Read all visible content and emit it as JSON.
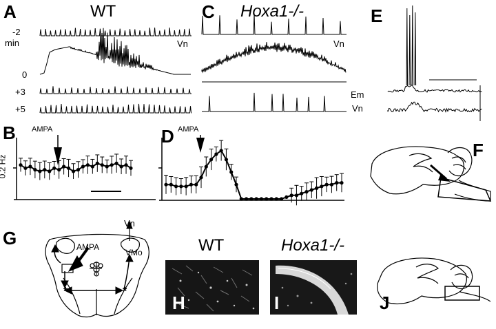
{
  "panels": {
    "A": "A",
    "B": "B",
    "C": "C",
    "D": "D",
    "E": "E",
    "F": "F",
    "G": "G",
    "H": "H",
    "I": "I",
    "J": "J"
  },
  "titles": {
    "wt_top": "WT",
    "ko_top": "Hoxa1-/-",
    "wt_bottom": "WT",
    "ko_bottom": "Hoxa1-/-"
  },
  "trace_labels": {
    "minus2": "-2",
    "min": "min",
    "zero": "0",
    "plus3": "+3",
    "plus5": "+5",
    "vn_a": "Vn",
    "vn_c": "Vn",
    "em_e": "Em",
    "vn_e": "Vn"
  },
  "plot_labels": {
    "ampa_b": "AMPA",
    "ampa_d": "AMPA",
    "yaxis_b": "0.2 Hz"
  },
  "schematic_labels": {
    "vn_g": "Vn",
    "ampa_g": "AMPA",
    "vmo_g": "VMo"
  },
  "chart_data": [
    {
      "type": "line",
      "panel": "B",
      "ylabel": "0.2 Hz",
      "annotation": "AMPA",
      "series": [
        {
          "values": [
            0.21,
            0.19,
            0.2,
            0.18,
            0.17,
            0.18,
            0.17,
            0.19,
            0.18,
            0.2,
            0.19,
            0.17,
            0.18,
            0.2,
            0.21,
            0.2,
            0.22,
            0.21,
            0.2,
            0.21,
            0.22,
            0.2,
            0.21,
            0.19
          ]
        }
      ]
    },
    {
      "type": "line",
      "panel": "D",
      "annotation": "AMPA",
      "series": [
        {
          "values": [
            0.08,
            0.08,
            0.07,
            0.07,
            0.07,
            0.08,
            0.08,
            0.12,
            0.18,
            0.22,
            0.25,
            0.27,
            0.22,
            0.15,
            0.08,
            0.0,
            0.0,
            0.0,
            0.0,
            0.0,
            0.0,
            0.0,
            0.0,
            0.0,
            0.01,
            0.02,
            0.02,
            0.03,
            0.04,
            0.05,
            0.06,
            0.07,
            0.08,
            0.08,
            0.09,
            0.09
          ]
        }
      ]
    }
  ]
}
